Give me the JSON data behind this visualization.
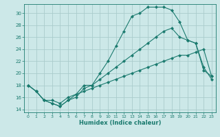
{
  "xlabel": "Humidex (Indice chaleur)",
  "bg_color": "#cce8e8",
  "grid_color": "#aacccc",
  "line_color": "#1a7a6e",
  "xlim": [
    -0.5,
    23.5
  ],
  "ylim": [
    13.5,
    31.5
  ],
  "xticks": [
    0,
    1,
    2,
    3,
    4,
    5,
    6,
    7,
    8,
    9,
    10,
    11,
    12,
    13,
    14,
    15,
    16,
    17,
    18,
    19,
    20,
    21,
    22,
    23
  ],
  "yticks": [
    14,
    16,
    18,
    20,
    22,
    24,
    26,
    28,
    30
  ],
  "line1_x": [
    0,
    1,
    2,
    3,
    4,
    5,
    6,
    7,
    8,
    9,
    10,
    11,
    12,
    13,
    14,
    15,
    16,
    17,
    18,
    19,
    20,
    21,
    22,
    23
  ],
  "line1_y": [
    18,
    17,
    15.5,
    15,
    14.5,
    15.5,
    16.5,
    18,
    18,
    20,
    22,
    24.5,
    27,
    29.5,
    30,
    31,
    31,
    31,
    30.5,
    28.5,
    25.5,
    25,
    20.5,
    19.5
  ],
  "line2_x": [
    0,
    1,
    2,
    3,
    4,
    5,
    6,
    7,
    8,
    9,
    10,
    11,
    12,
    13,
    14,
    15,
    16,
    17,
    18,
    19,
    20,
    21,
    22,
    23
  ],
  "line2_y": [
    18,
    17,
    15.5,
    15,
    14.5,
    15.5,
    16,
    17.5,
    18,
    19,
    20,
    21,
    22,
    23,
    24,
    25,
    26,
    27,
    27.5,
    26,
    25.5,
    25,
    21,
    19
  ],
  "line3_x": [
    0,
    1,
    2,
    3,
    4,
    5,
    6,
    7,
    8,
    9,
    10,
    11,
    12,
    13,
    14,
    15,
    16,
    17,
    18,
    19,
    20,
    21,
    22,
    23
  ],
  "line3_y": [
    18,
    17,
    15.5,
    15.5,
    15,
    16,
    16.5,
    17,
    17.5,
    18,
    18.5,
    19,
    19.5,
    20,
    20.5,
    21,
    21.5,
    22,
    22.5,
    23,
    23,
    23.5,
    24,
    19.5
  ]
}
